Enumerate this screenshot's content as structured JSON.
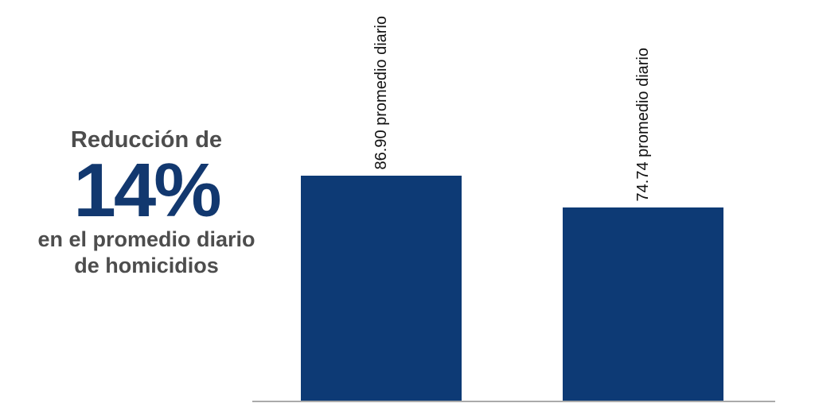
{
  "colors": {
    "background": "#ffffff",
    "bar": "#0d3a75",
    "percent_text": "#12386f",
    "gray_text": "#4d4d4d",
    "bar_label_text": "#111111",
    "baseline": "#aaaaaa"
  },
  "headline": {
    "prefix": "Reducción de",
    "percent": "14%",
    "suffix_line1": "en el promedio diario",
    "suffix_line2": "de homicidios"
  },
  "chart_data": {
    "type": "bar",
    "values": [
      86.9,
      74.74
    ],
    "bar_labels": [
      "86.90 promedio diario",
      "74.74 promedio diario"
    ],
    "bar_label_rotation_deg": 90,
    "ylim": [
      0,
      155
    ],
    "xlabel": "",
    "ylabel": "",
    "title": "",
    "grid": false,
    "legend": false,
    "axes_visible": "baseline-only",
    "annotation": "Reducción de 14% en el promedio diario de homicidios"
  }
}
